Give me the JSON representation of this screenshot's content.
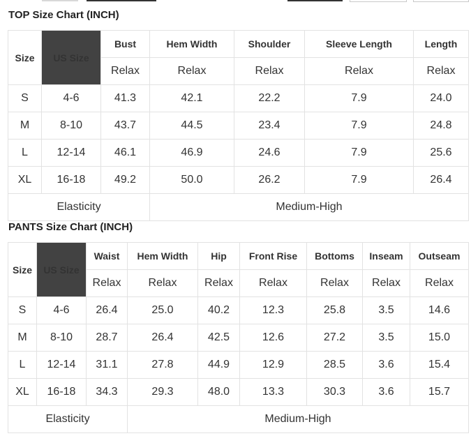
{
  "top_chart": {
    "title": "TOP Size Chart (INCH)",
    "size_header": "Size",
    "us_size_header": "US Size",
    "measure_headers": [
      "Bust",
      "Hem Width",
      "Shoulder",
      "Sleeve Length",
      "Length"
    ],
    "fit_labels": [
      "Relax",
      "Relax",
      "Relax",
      "Relax",
      "Relax"
    ],
    "rows": [
      {
        "size": "S",
        "us": "4-6",
        "values": [
          "41.3",
          "42.1",
          "22.2",
          "7.9",
          "24.0"
        ]
      },
      {
        "size": "M",
        "us": "8-10",
        "values": [
          "43.7",
          "44.5",
          "23.4",
          "7.9",
          "24.8"
        ]
      },
      {
        "size": "L",
        "us": "12-14",
        "values": [
          "46.1",
          "46.9",
          "24.6",
          "7.9",
          "25.6"
        ]
      },
      {
        "size": "XL",
        "us": "16-18",
        "values": [
          "49.2",
          "50.0",
          "26.2",
          "7.9",
          "26.4"
        ]
      }
    ],
    "elasticity_label": "Elasticity",
    "elasticity_value": "Medium-High"
  },
  "pants_chart": {
    "title": "PANTS Size Chart (INCH)",
    "size_header": "Size",
    "us_size_header": "US Size",
    "measure_headers": [
      "Waist",
      "Hem Width",
      "Hip",
      "Front Rise",
      "Bottoms",
      "Inseam",
      "Outseam"
    ],
    "fit_labels": [
      "Relax",
      "Relax",
      "Relax",
      "Relax",
      "Relax",
      "Relax",
      "Relax"
    ],
    "rows": [
      {
        "size": "S",
        "us": "4-6",
        "values": [
          "26.4",
          "25.0",
          "40.2",
          "12.3",
          "25.8",
          "3.5",
          "14.6"
        ]
      },
      {
        "size": "M",
        "us": "8-10",
        "values": [
          "28.7",
          "26.4",
          "42.5",
          "12.6",
          "27.2",
          "3.5",
          "15.0"
        ]
      },
      {
        "size": "L",
        "us": "12-14",
        "values": [
          "31.1",
          "27.8",
          "44.9",
          "12.9",
          "28.5",
          "3.6",
          "15.4"
        ]
      },
      {
        "size": "XL",
        "us": "16-18",
        "values": [
          "34.3",
          "29.3",
          "48.0",
          "13.3",
          "30.3",
          "3.6",
          "15.7"
        ]
      }
    ],
    "elasticity_label": "Elasticity",
    "elasticity_value": "Medium-High"
  },
  "colors": {
    "us_size_header_bg": "#424242",
    "border": "#e2e2e2",
    "text": "#333333"
  }
}
